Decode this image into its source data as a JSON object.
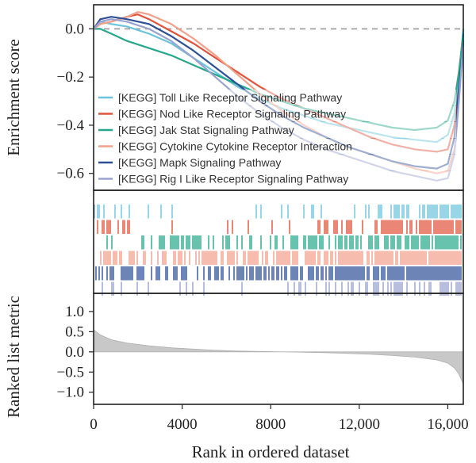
{
  "chart_data": {
    "type": "line",
    "xlabel": "Rank in ordered dataset",
    "panels": {
      "enrichment": {
        "ylabel": "Enrichment score",
        "ylim": [
          -0.67,
          0.1
        ],
        "yticks": [
          {
            "value": 0.0,
            "label": "0.0"
          },
          {
            "value": -0.2,
            "label": "−0.2"
          },
          {
            "value": -0.4,
            "label": "−0.4"
          },
          {
            "value": -0.6,
            "label": "−0.6"
          }
        ],
        "zero_line": "dashed",
        "legend_position": "bottom-left"
      },
      "hits": {
        "ylabel": ""
      },
      "metric": {
        "ylabel": "Ranked list metric",
        "ylim": [
          -1.3,
          1.45
        ],
        "yticks": [
          {
            "value": 1.0,
            "label": "1.0"
          },
          {
            "value": 0.5,
            "label": "0.5"
          },
          {
            "value": 0.0,
            "label": "0.0"
          },
          {
            "value": -0.5,
            "label": "−0.5"
          },
          {
            "value": -1.0,
            "label": "−1.0"
          }
        ],
        "fill_color": "#c8c8c8"
      }
    },
    "xlim": [
      0,
      16700
    ],
    "xticks": [
      {
        "value": 0,
        "label": "0"
      },
      {
        "value": 4000,
        "label": "4000"
      },
      {
        "value": 8000,
        "label": "8000"
      },
      {
        "value": 12000,
        "label": "12,000"
      },
      {
        "value": 16000,
        "label": "16,000"
      }
    ],
    "series": [
      {
        "name": "[KEGG] Toll Like Receptor Signaling Pathway",
        "color": "#6cc3dc",
        "x": [
          0,
          300,
          800,
          1500,
          2500,
          3500,
          4500,
          5500,
          6500,
          7500,
          8500,
          9500,
          10500,
          11500,
          12500,
          13500,
          14500,
          15500,
          16000,
          16300,
          16500,
          16700
        ],
        "y": [
          0.0,
          0.03,
          0.02,
          0.01,
          -0.02,
          -0.06,
          -0.12,
          -0.18,
          -0.24,
          -0.29,
          -0.33,
          -0.36,
          -0.39,
          -0.41,
          -0.43,
          -0.45,
          -0.46,
          -0.47,
          -0.44,
          -0.35,
          -0.2,
          0.0
        ]
      },
      {
        "name": "[KEGG] Nod Like Receptor Signaling Pathway",
        "color": "#e0533c",
        "x": [
          0,
          300,
          800,
          1500,
          2000,
          2500,
          3500,
          4500,
          5500,
          6500,
          7500,
          8500,
          9500,
          10500,
          11500,
          12500,
          13500,
          14500,
          15500,
          16000,
          16300,
          16500,
          16700
        ],
        "y": [
          0.0,
          0.02,
          0.03,
          0.05,
          0.06,
          0.04,
          -0.01,
          -0.06,
          -0.12,
          -0.18,
          -0.24,
          -0.29,
          -0.33,
          -0.37,
          -0.41,
          -0.45,
          -0.48,
          -0.5,
          -0.51,
          -0.5,
          -0.4,
          -0.25,
          -0.05
        ]
      },
      {
        "name": "[KEGG] Jak Stat Signaling Pathway",
        "color": "#26a88c",
        "x": [
          0,
          300,
          800,
          1500,
          2500,
          3500,
          4500,
          5500,
          6500,
          7500,
          8500,
          9500,
          10500,
          11500,
          12500,
          13500,
          14500,
          15500,
          16000,
          16300,
          16500,
          16700
        ],
        "y": [
          0.0,
          0.0,
          -0.02,
          -0.05,
          -0.08,
          -0.11,
          -0.15,
          -0.19,
          -0.23,
          -0.27,
          -0.3,
          -0.33,
          -0.35,
          -0.37,
          -0.39,
          -0.41,
          -0.42,
          -0.41,
          -0.38,
          -0.3,
          -0.18,
          -0.02
        ]
      },
      {
        "name": "[KEGG] Cytokine Cytokine Receptor Interaction",
        "color": "#f3a08a",
        "x": [
          0,
          300,
          800,
          1500,
          2000,
          2500,
          3500,
          4500,
          5500,
          6500,
          7500,
          8500,
          9500,
          10500,
          11500,
          12500,
          13500,
          14500,
          15500,
          16000,
          16300,
          16500,
          16700
        ],
        "y": [
          0.0,
          0.02,
          0.03,
          0.05,
          0.07,
          0.06,
          0.02,
          -0.04,
          -0.11,
          -0.19,
          -0.27,
          -0.34,
          -0.4,
          -0.45,
          -0.49,
          -0.52,
          -0.55,
          -0.58,
          -0.6,
          -0.59,
          -0.5,
          -0.3,
          -0.05
        ]
      },
      {
        "name": "[KEGG] Mapk Signaling Pathway",
        "color": "#2e4f96",
        "x": [
          0,
          300,
          800,
          1500,
          2500,
          3500,
          4500,
          5500,
          6500,
          7500,
          8500,
          9500,
          10500,
          11500,
          12500,
          13500,
          14500,
          15500,
          16000,
          16300,
          16500,
          16700
        ],
        "y": [
          0.0,
          0.04,
          0.05,
          0.04,
          0.02,
          -0.03,
          -0.09,
          -0.16,
          -0.23,
          -0.3,
          -0.36,
          -0.41,
          -0.45,
          -0.49,
          -0.52,
          -0.55,
          -0.57,
          -0.58,
          -0.56,
          -0.45,
          -0.25,
          -0.05
        ]
      },
      {
        "name": "[KEGG] Rig I Like Receptor Signaling Pathway",
        "color": "#9aa3cf",
        "x": [
          0,
          300,
          800,
          1500,
          2500,
          3500,
          4500,
          5500,
          6500,
          7500,
          8500,
          9500,
          10500,
          11500,
          12500,
          13500,
          14500,
          15500,
          16000,
          16300,
          16500,
          16700
        ],
        "y": [
          0.0,
          0.03,
          0.04,
          0.03,
          0.0,
          -0.05,
          -0.12,
          -0.2,
          -0.28,
          -0.35,
          -0.41,
          -0.46,
          -0.5,
          -0.53,
          -0.56,
          -0.59,
          -0.61,
          -0.63,
          -0.62,
          -0.52,
          -0.3,
          -0.05
        ]
      }
    ],
    "hit_rows": [
      {
        "name": "[KEGG] Toll Like Receptor Signaling Pathway",
        "color": "#6cc3dc",
        "density": [
          0.35,
          0.3,
          0.2,
          0.12,
          0.08,
          0.06,
          0.05,
          0.06,
          0.08,
          0.12,
          0.2,
          0.3,
          0.45,
          0.6,
          0.75,
          0.9
        ]
      },
      {
        "name": "[KEGG] Nod Like Receptor Signaling Pathway",
        "color": "#e0533c",
        "density": [
          0.3,
          0.25,
          0.18,
          0.12,
          0.08,
          0.05,
          0.05,
          0.06,
          0.1,
          0.18,
          0.3,
          0.45,
          0.6,
          0.75,
          0.85,
          0.95
        ]
      },
      {
        "name": "[KEGG] Jak Stat Signaling Pathway",
        "color": "#26a88c",
        "density": [
          0.15,
          0.2,
          0.35,
          0.45,
          0.5,
          0.5,
          0.45,
          0.45,
          0.5,
          0.55,
          0.6,
          0.65,
          0.7,
          0.75,
          0.8,
          0.9
        ]
      },
      {
        "name": "[KEGG] Cytokine Cytokine Receptor Interaction",
        "color": "#f3a08a",
        "density": [
          0.5,
          0.55,
          0.6,
          0.6,
          0.55,
          0.55,
          0.55,
          0.6,
          0.65,
          0.7,
          0.75,
          0.8,
          0.85,
          0.9,
          0.92,
          0.95
        ]
      },
      {
        "name": "[KEGG] Mapk Signaling Pathway",
        "color": "#2e4f96",
        "density": [
          0.6,
          0.6,
          0.6,
          0.6,
          0.6,
          0.6,
          0.6,
          0.65,
          0.7,
          0.75,
          0.8,
          0.85,
          0.9,
          0.92,
          0.95,
          0.97
        ]
      },
      {
        "name": "[KEGG] Rig I Like Receptor Signaling Pathway",
        "color": "#9aa3cf",
        "density": [
          0.3,
          0.25,
          0.2,
          0.15,
          0.12,
          0.1,
          0.1,
          0.12,
          0.15,
          0.2,
          0.28,
          0.35,
          0.45,
          0.55,
          0.7,
          0.85
        ]
      }
    ],
    "ranked_metric": {
      "x": [
        0,
        300,
        800,
        1500,
        2500,
        3500,
        4500,
        5500,
        6500,
        7500,
        8500,
        9500,
        10500,
        11500,
        12500,
        13500,
        14500,
        15500,
        16000,
        16300,
        16500,
        16700
      ],
      "y": [
        0.55,
        0.42,
        0.3,
        0.22,
        0.15,
        0.1,
        0.07,
        0.04,
        0.02,
        0.01,
        0.0,
        -0.01,
        -0.02,
        -0.04,
        -0.06,
        -0.09,
        -0.13,
        -0.2,
        -0.28,
        -0.4,
        -0.55,
        -0.8
      ]
    }
  }
}
